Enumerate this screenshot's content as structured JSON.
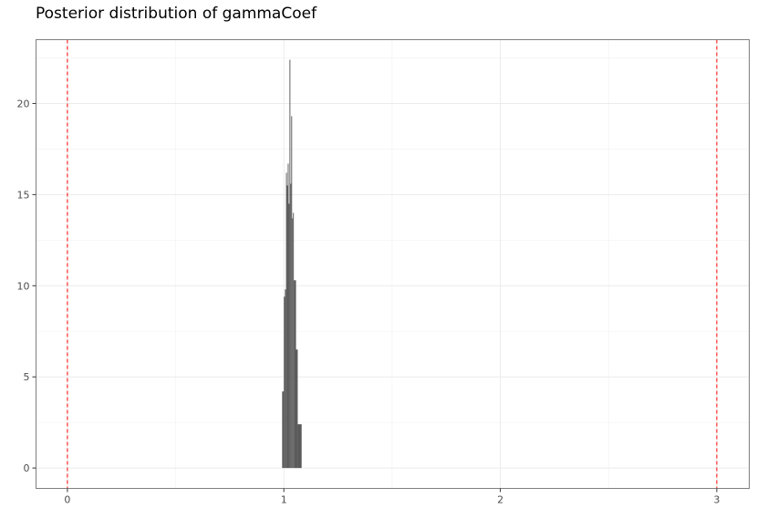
{
  "chart_data": {
    "type": "bar",
    "title": "Posterior distribution of gammaCoef",
    "xlabel": "",
    "ylabel": "",
    "xlim": [
      -0.145,
      3.15
    ],
    "ylim": [
      -1.12,
      23.5
    ],
    "x_ticks": [
      0,
      1,
      2,
      3
    ],
    "x_tick_labels": [
      "0",
      "1",
      "2",
      "3"
    ],
    "y_ticks": [
      0,
      5,
      10,
      15,
      20
    ],
    "y_tick_labels": [
      "0",
      "5",
      "10",
      "15",
      "20"
    ],
    "grid": true,
    "legend": "none",
    "bar_color": "#595959",
    "reference_line_color": "#ff0000",
    "reference_lines_x": [
      0,
      3
    ],
    "bins": [
      {
        "x0": 0.992,
        "x1": 1.0,
        "density": 4.2
      },
      {
        "x0": 1.0,
        "x1": 1.005,
        "density": 9.4
      },
      {
        "x0": 1.005,
        "x1": 1.01,
        "density": 9.8
      },
      {
        "x0": 1.01,
        "x1": 1.014,
        "density": 16.2
      },
      {
        "x0": 1.014,
        "x1": 1.018,
        "density": 15.5
      },
      {
        "x0": 1.018,
        "x1": 1.022,
        "density": 16.7
      },
      {
        "x0": 1.022,
        "x1": 1.026,
        "density": 14.5
      },
      {
        "x0": 1.026,
        "x1": 1.03,
        "density": 22.4
      },
      {
        "x0": 1.03,
        "x1": 1.034,
        "density": 15.6
      },
      {
        "x0": 1.034,
        "x1": 1.038,
        "density": 19.3
      },
      {
        "x0": 1.038,
        "x1": 1.042,
        "density": 13.7
      },
      {
        "x0": 1.042,
        "x1": 1.046,
        "density": 14.0
      },
      {
        "x0": 1.046,
        "x1": 1.056,
        "density": 10.3
      },
      {
        "x0": 1.056,
        "x1": 1.064,
        "density": 6.5
      },
      {
        "x0": 1.064,
        "x1": 1.082,
        "density": 2.4
      }
    ]
  }
}
